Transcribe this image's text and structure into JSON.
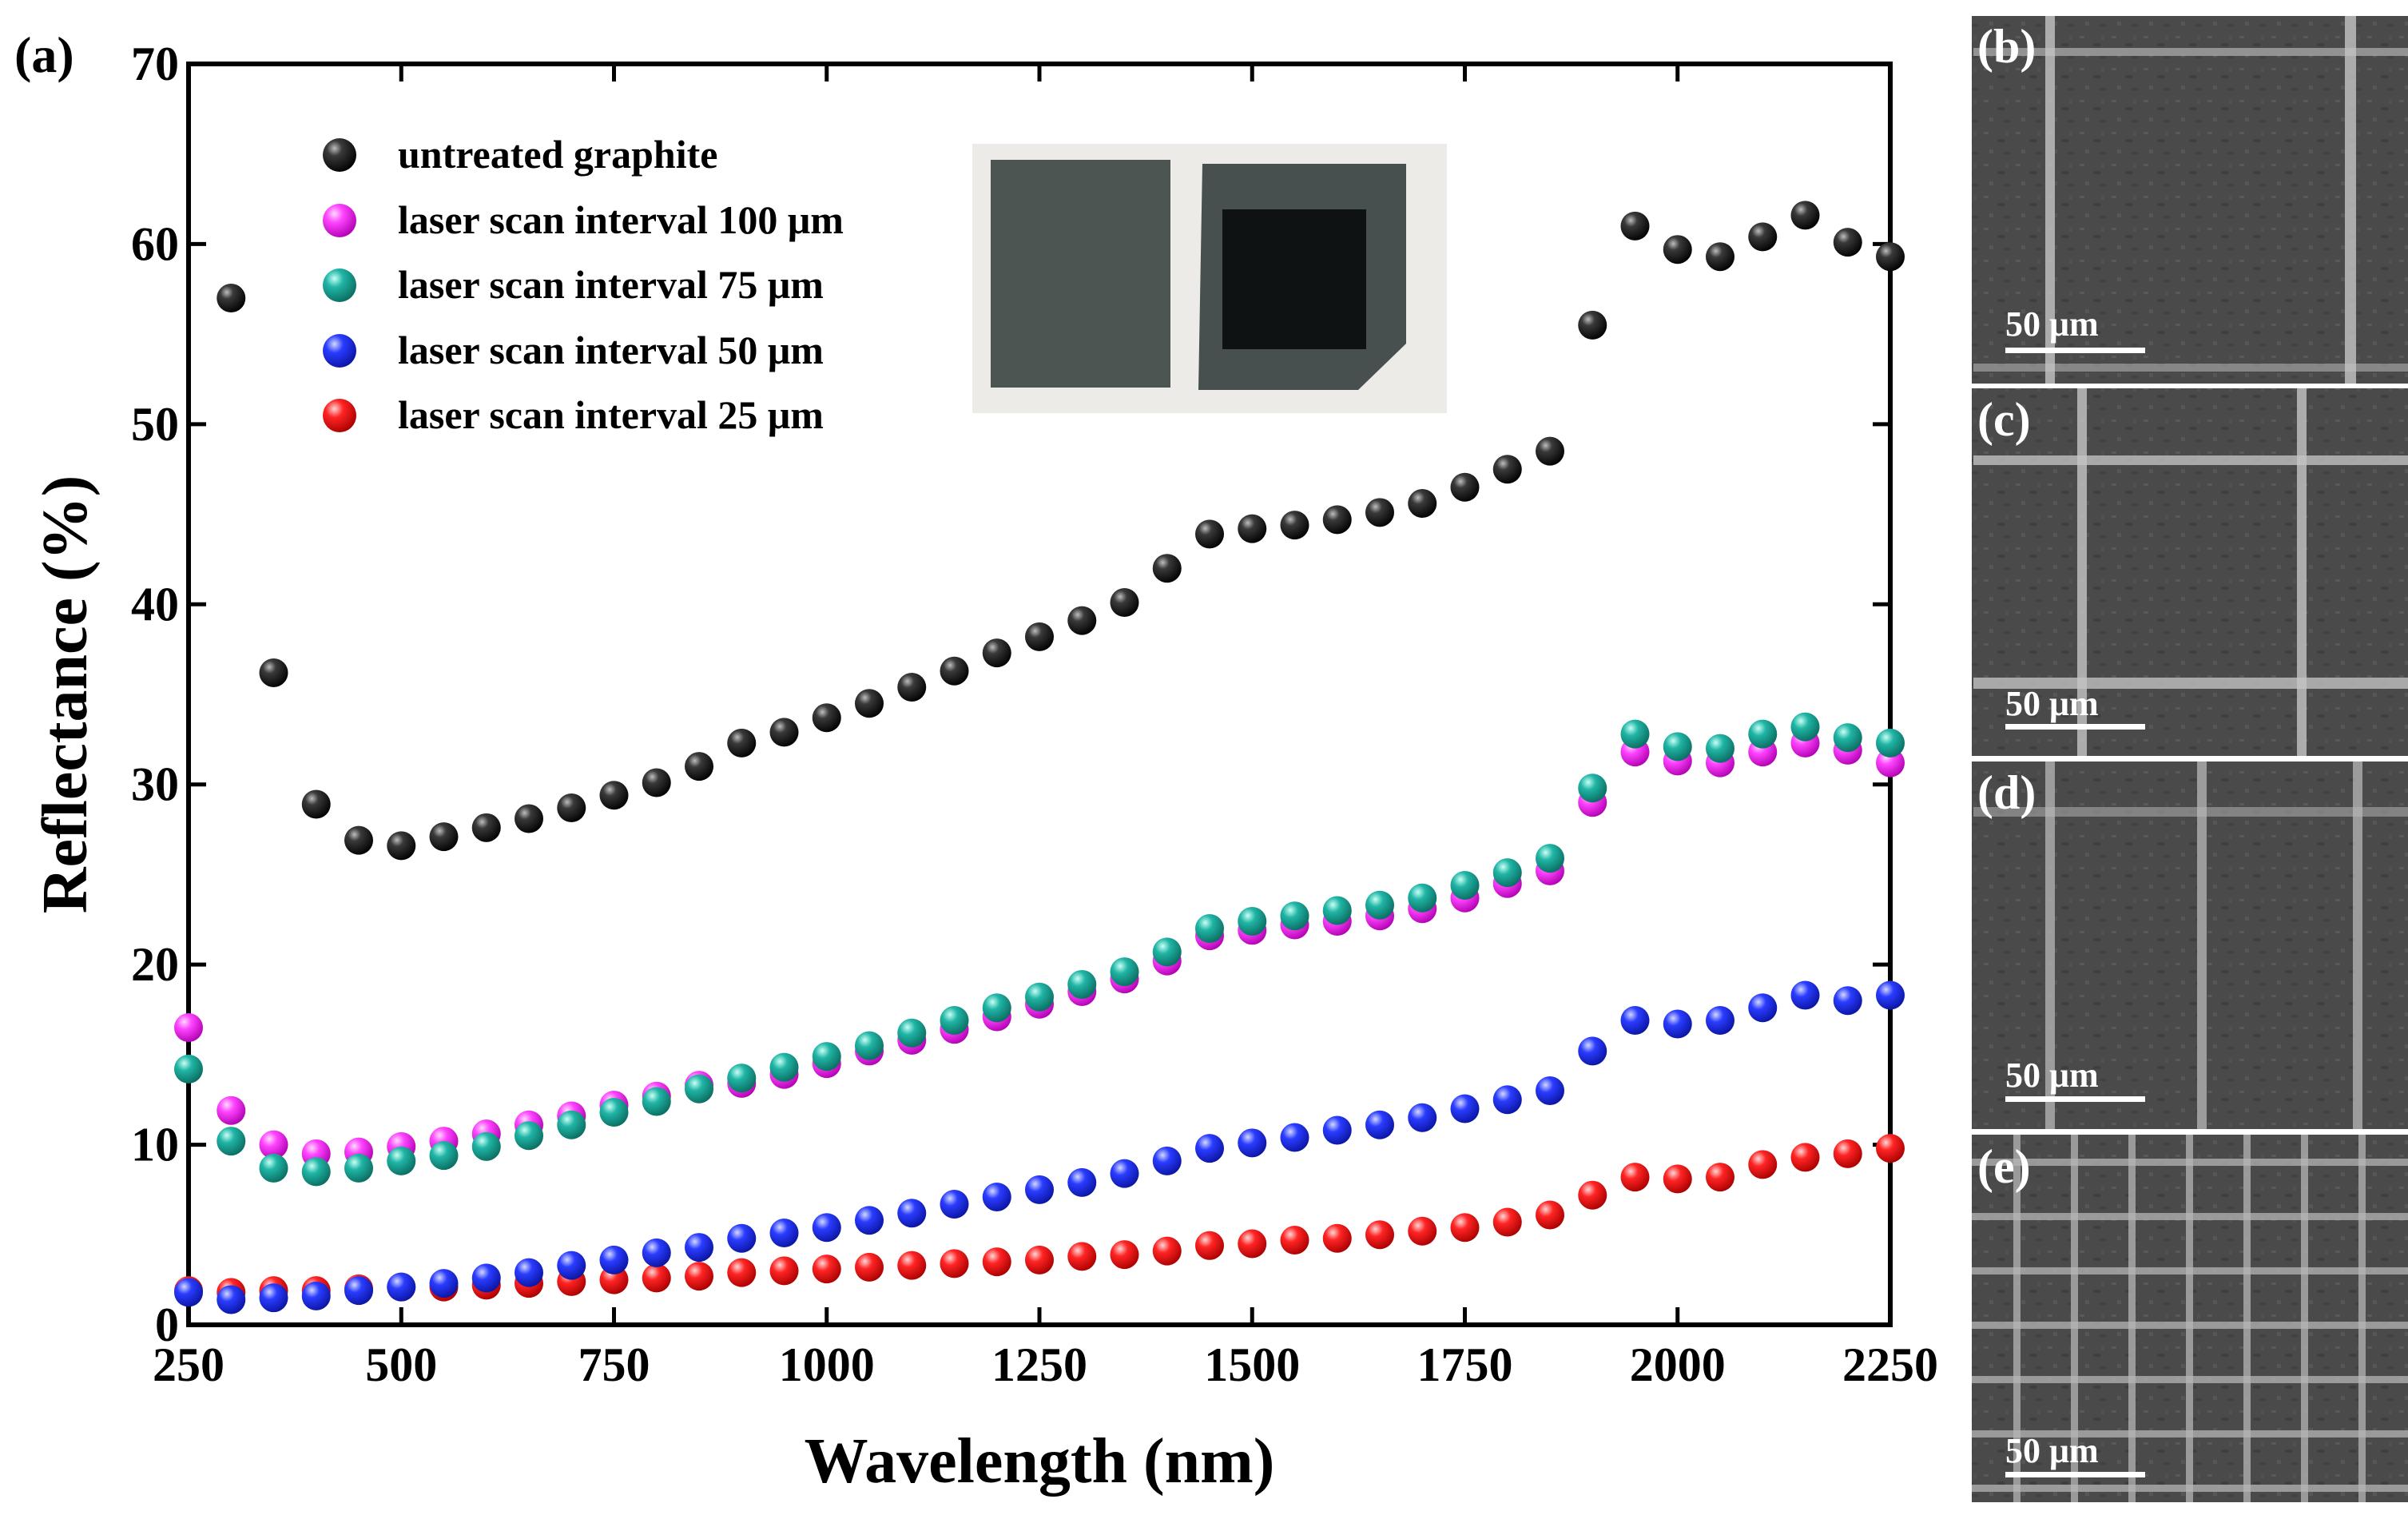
{
  "panel_labels": {
    "a": "(a)",
    "b": "(b)",
    "c": "(c)",
    "d": "(d)",
    "e": "(e)"
  },
  "scale_bar_label": "50 μm",
  "chart_data": {
    "type": "scatter",
    "xlabel": "Wavelength (nm)",
    "ylabel": "Reflectance (%)",
    "xlim": [
      250,
      2250
    ],
    "ylim": [
      0,
      70
    ],
    "x_ticks": [
      250,
      500,
      750,
      1000,
      1250,
      1500,
      1750,
      2000,
      2250
    ],
    "y_ticks": [
      0,
      10,
      20,
      30,
      40,
      50,
      60,
      70
    ],
    "grid": false,
    "legend_position": "top-left",
    "x": [
      250,
      300,
      350,
      400,
      450,
      500,
      550,
      600,
      650,
      700,
      750,
      800,
      850,
      900,
      950,
      1000,
      1050,
      1100,
      1150,
      1200,
      1250,
      1300,
      1350,
      1400,
      1450,
      1500,
      1550,
      1600,
      1650,
      1700,
      1750,
      1800,
      1850,
      1900,
      1950,
      2000,
      2050,
      2100,
      2150,
      2200,
      2250
    ],
    "series": [
      {
        "name": "untreated graphite",
        "color": "#111111",
        "values": [
          null,
          57.0,
          36.2,
          28.9,
          26.9,
          26.6,
          27.1,
          27.6,
          28.1,
          28.7,
          29.4,
          30.1,
          31.0,
          32.3,
          32.9,
          33.7,
          34.5,
          35.4,
          36.3,
          37.3,
          38.2,
          39.1,
          40.1,
          42.0,
          43.9,
          44.2,
          44.4,
          44.7,
          45.1,
          45.6,
          46.5,
          47.5,
          48.5,
          55.5,
          61.0,
          59.7,
          59.3,
          60.4,
          61.6,
          60.1,
          59.3
        ]
      },
      {
        "name": "laser scan interval 100 μm",
        "color": "#ff33ff",
        "values": [
          16.5,
          11.9,
          10.0,
          9.5,
          9.6,
          9.9,
          10.2,
          10.6,
          11.1,
          11.6,
          12.2,
          12.7,
          13.3,
          13.4,
          13.9,
          14.5,
          15.2,
          15.8,
          16.4,
          17.1,
          17.8,
          18.5,
          19.2,
          20.2,
          21.6,
          21.9,
          22.2,
          22.4,
          22.7,
          23.1,
          23.7,
          24.5,
          25.2,
          29.0,
          31.8,
          31.3,
          31.2,
          31.8,
          32.3,
          31.9,
          31.2
        ]
      },
      {
        "name": "laser scan interval 75 μm",
        "color": "#14a89a",
        "values": [
          14.2,
          10.2,
          8.7,
          8.5,
          8.7,
          9.1,
          9.4,
          9.9,
          10.5,
          11.1,
          11.8,
          12.4,
          13.1,
          13.7,
          14.3,
          14.9,
          15.5,
          16.2,
          16.9,
          17.6,
          18.2,
          18.9,
          19.6,
          20.7,
          22.0,
          22.4,
          22.7,
          23.0,
          23.3,
          23.7,
          24.4,
          25.1,
          25.9,
          29.8,
          32.8,
          32.1,
          32.0,
          32.8,
          33.2,
          32.6,
          32.3
        ]
      },
      {
        "name": "laser scan interval 50 μm",
        "color": "#1f2fe8",
        "values": [
          1.8,
          1.4,
          1.5,
          1.6,
          1.9,
          2.1,
          2.3,
          2.6,
          2.9,
          3.3,
          3.6,
          4.0,
          4.3,
          4.8,
          5.1,
          5.4,
          5.8,
          6.2,
          6.7,
          7.1,
          7.5,
          7.9,
          8.4,
          9.1,
          9.8,
          10.1,
          10.4,
          10.8,
          11.1,
          11.5,
          12.0,
          12.5,
          13.0,
          15.2,
          16.9,
          16.7,
          16.9,
          17.6,
          18.3,
          18.0,
          18.3
        ]
      },
      {
        "name": "laser scan interval 25 μm",
        "color": "#ee1c1c",
        "values": [
          1.9,
          1.8,
          1.9,
          1.9,
          2.0,
          2.1,
          2.1,
          2.2,
          2.3,
          2.4,
          2.5,
          2.6,
          2.7,
          2.9,
          3.0,
          3.1,
          3.2,
          3.3,
          3.4,
          3.5,
          3.6,
          3.8,
          3.9,
          4.1,
          4.4,
          4.5,
          4.7,
          4.8,
          5.0,
          5.2,
          5.4,
          5.7,
          6.1,
          7.2,
          8.2,
          8.1,
          8.2,
          8.9,
          9.3,
          9.5,
          9.8
        ]
      }
    ]
  }
}
